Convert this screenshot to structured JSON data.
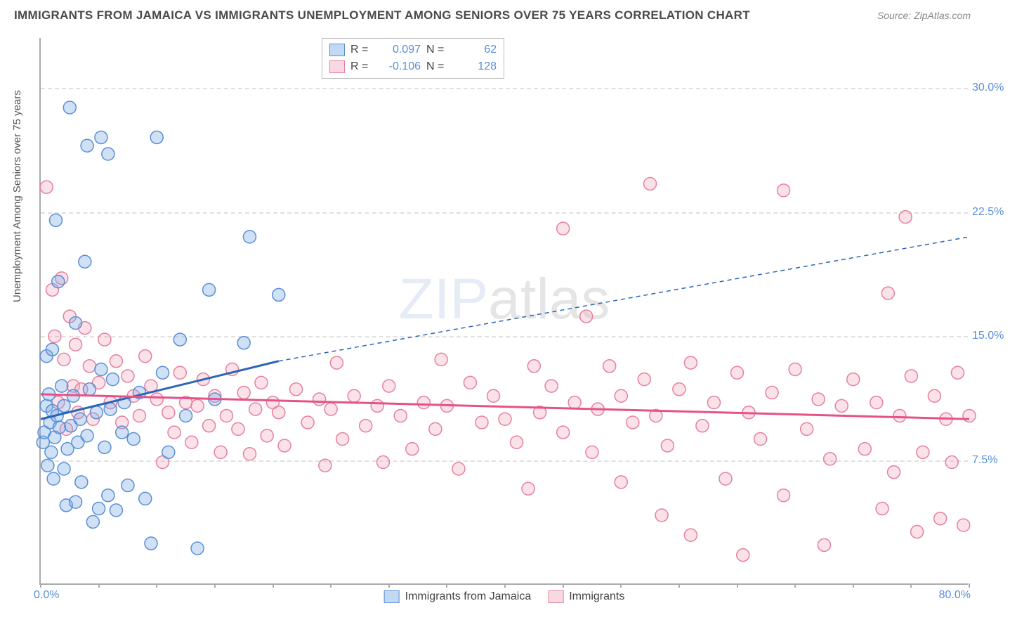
{
  "title": "IMMIGRANTS FROM JAMAICA VS IMMIGRANTS UNEMPLOYMENT AMONG SENIORS OVER 75 YEARS CORRELATION CHART",
  "source": "Source: ZipAtlas.com",
  "watermark_a": "ZIP",
  "watermark_b": "atlas",
  "ylabel": "Unemployment Among Seniors over 75 years",
  "chart": {
    "type": "scatter",
    "xlim": [
      0,
      80
    ],
    "ylim": [
      0,
      33
    ],
    "x_tick_marks": [
      0,
      5,
      10,
      15,
      20,
      25,
      30,
      35,
      40,
      45,
      50,
      55,
      60,
      65,
      70,
      75,
      80
    ],
    "x_tick_labels": {
      "0": "0.0%",
      "80": "80.0%"
    },
    "y_grid": [
      7.5,
      15.0,
      22.5,
      30.0
    ],
    "y_tick_labels": {
      "7.5": "7.5%",
      "15.0": "15.0%",
      "22.5": "22.5%",
      "30.0": "30.0%"
    },
    "background_color": "#ffffff",
    "grid_color": "#e0e0e0",
    "axis_color": "#aaaaaa",
    "tick_label_color": "#5a8fd6",
    "label_color": "#555555",
    "marker_radius": 9,
    "marker_stroke_width": 1.5,
    "series": [
      {
        "name": "Immigrants from Jamaica",
        "color_fill": "rgba(120,170,230,0.35)",
        "color_stroke": "#5a8fd6",
        "R": "0.097",
        "N": "62",
        "trend": {
          "x1": 0,
          "y1": 10.0,
          "x2": 20.5,
          "y2": 13.5,
          "x2_ext": 80,
          "y2_ext": 21.0,
          "color": "#2a66b8",
          "width": 3
        },
        "points": [
          [
            0.2,
            8.6
          ],
          [
            0.3,
            9.2
          ],
          [
            0.5,
            10.8
          ],
          [
            0.5,
            13.8
          ],
          [
            0.6,
            7.2
          ],
          [
            0.7,
            11.5
          ],
          [
            0.8,
            9.8
          ],
          [
            0.9,
            8.0
          ],
          [
            1.0,
            10.5
          ],
          [
            1.0,
            14.2
          ],
          [
            1.1,
            6.4
          ],
          [
            1.2,
            8.9
          ],
          [
            1.3,
            22.0
          ],
          [
            1.4,
            10.2
          ],
          [
            1.5,
            18.3
          ],
          [
            1.6,
            9.5
          ],
          [
            1.8,
            12.0
          ],
          [
            2.0,
            7.0
          ],
          [
            2.0,
            10.8
          ],
          [
            2.2,
            4.8
          ],
          [
            2.3,
            8.2
          ],
          [
            2.5,
            28.8
          ],
          [
            2.6,
            9.6
          ],
          [
            2.8,
            11.4
          ],
          [
            3.0,
            5.0
          ],
          [
            3.0,
            15.8
          ],
          [
            3.2,
            8.6
          ],
          [
            3.4,
            10.0
          ],
          [
            3.5,
            6.2
          ],
          [
            3.8,
            19.5
          ],
          [
            4.0,
            26.5
          ],
          [
            4.0,
            9.0
          ],
          [
            4.2,
            11.8
          ],
          [
            4.5,
            3.8
          ],
          [
            4.8,
            10.4
          ],
          [
            5.0,
            4.6
          ],
          [
            5.2,
            27.0
          ],
          [
            5.2,
            13.0
          ],
          [
            5.5,
            8.3
          ],
          [
            5.8,
            26.0
          ],
          [
            5.8,
            5.4
          ],
          [
            6.0,
            10.6
          ],
          [
            6.2,
            12.4
          ],
          [
            6.5,
            4.5
          ],
          [
            7.0,
            9.2
          ],
          [
            7.2,
            11.0
          ],
          [
            7.5,
            6.0
          ],
          [
            8.0,
            8.8
          ],
          [
            8.5,
            11.6
          ],
          [
            9.0,
            5.2
          ],
          [
            9.5,
            2.5
          ],
          [
            10.0,
            27.0
          ],
          [
            10.5,
            12.8
          ],
          [
            11.0,
            8.0
          ],
          [
            12.0,
            14.8
          ],
          [
            12.5,
            10.2
          ],
          [
            13.5,
            2.2
          ],
          [
            14.5,
            17.8
          ],
          [
            15.0,
            11.2
          ],
          [
            17.5,
            14.6
          ],
          [
            18.0,
            21.0
          ],
          [
            20.5,
            17.5
          ]
        ]
      },
      {
        "name": "Immigrants",
        "color_fill": "rgba(240,160,180,0.30)",
        "color_stroke": "#e6809f",
        "R": "-0.106",
        "N": "128",
        "trend": {
          "x1": 0,
          "y1": 11.5,
          "x2": 80,
          "y2": 10.0,
          "color": "#e65288",
          "width": 3
        },
        "points": [
          [
            0.5,
            24.0
          ],
          [
            1.0,
            17.8
          ],
          [
            1.2,
            15.0
          ],
          [
            1.5,
            11.0
          ],
          [
            1.8,
            18.5
          ],
          [
            2.0,
            13.6
          ],
          [
            2.2,
            9.4
          ],
          [
            2.5,
            16.2
          ],
          [
            2.8,
            12.0
          ],
          [
            3.0,
            14.5
          ],
          [
            3.2,
            10.4
          ],
          [
            3.5,
            11.8
          ],
          [
            3.8,
            15.5
          ],
          [
            4.2,
            13.2
          ],
          [
            4.5,
            10.0
          ],
          [
            5.0,
            12.2
          ],
          [
            5.5,
            14.8
          ],
          [
            6.0,
            11.0
          ],
          [
            6.5,
            13.5
          ],
          [
            7.0,
            9.8
          ],
          [
            7.5,
            12.6
          ],
          [
            8.0,
            11.4
          ],
          [
            8.5,
            10.2
          ],
          [
            9.0,
            13.8
          ],
          [
            9.5,
            12.0
          ],
          [
            10.0,
            11.2
          ],
          [
            10.5,
            7.4
          ],
          [
            11.0,
            10.4
          ],
          [
            11.5,
            9.2
          ],
          [
            12.0,
            12.8
          ],
          [
            12.5,
            11.0
          ],
          [
            13.0,
            8.6
          ],
          [
            13.5,
            10.8
          ],
          [
            14.0,
            12.4
          ],
          [
            14.5,
            9.6
          ],
          [
            15.0,
            11.4
          ],
          [
            15.5,
            8.0
          ],
          [
            16.0,
            10.2
          ],
          [
            16.5,
            13.0
          ],
          [
            17.0,
            9.4
          ],
          [
            17.5,
            11.6
          ],
          [
            18.0,
            7.9
          ],
          [
            18.5,
            10.6
          ],
          [
            19.0,
            12.2
          ],
          [
            19.5,
            9.0
          ],
          [
            20.0,
            11.0
          ],
          [
            20.5,
            10.4
          ],
          [
            21.0,
            8.4
          ],
          [
            22.0,
            11.8
          ],
          [
            23.0,
            9.8
          ],
          [
            24.0,
            11.2
          ],
          [
            24.5,
            7.2
          ],
          [
            25.0,
            10.6
          ],
          [
            25.5,
            13.4
          ],
          [
            26.0,
            8.8
          ],
          [
            27.0,
            11.4
          ],
          [
            28.0,
            9.6
          ],
          [
            29.0,
            10.8
          ],
          [
            29.5,
            7.4
          ],
          [
            30.0,
            12.0
          ],
          [
            31.0,
            10.2
          ],
          [
            32.0,
            8.2
          ],
          [
            33.0,
            11.0
          ],
          [
            34.0,
            9.4
          ],
          [
            34.5,
            13.6
          ],
          [
            35.0,
            10.8
          ],
          [
            36.0,
            7.0
          ],
          [
            37.0,
            12.2
          ],
          [
            38.0,
            9.8
          ],
          [
            39.0,
            11.4
          ],
          [
            40.0,
            10.0
          ],
          [
            41.0,
            8.6
          ],
          [
            42.0,
            5.8
          ],
          [
            42.5,
            13.2
          ],
          [
            43.0,
            10.4
          ],
          [
            44.0,
            12.0
          ],
          [
            45.0,
            21.5
          ],
          [
            45.0,
            9.2
          ],
          [
            46.0,
            11.0
          ],
          [
            47.0,
            16.2
          ],
          [
            47.5,
            8.0
          ],
          [
            48.0,
            10.6
          ],
          [
            49.0,
            13.2
          ],
          [
            50.0,
            11.4
          ],
          [
            50.0,
            6.2
          ],
          [
            51.0,
            9.8
          ],
          [
            52.0,
            12.4
          ],
          [
            52.5,
            24.2
          ],
          [
            53.0,
            10.2
          ],
          [
            53.5,
            4.2
          ],
          [
            54.0,
            8.4
          ],
          [
            55.0,
            11.8
          ],
          [
            56.0,
            13.4
          ],
          [
            56.0,
            3.0
          ],
          [
            57.0,
            9.6
          ],
          [
            58.0,
            11.0
          ],
          [
            59.0,
            6.4
          ],
          [
            60.0,
            12.8
          ],
          [
            60.5,
            1.8
          ],
          [
            61.0,
            10.4
          ],
          [
            62.0,
            8.8
          ],
          [
            63.0,
            11.6
          ],
          [
            64.0,
            23.8
          ],
          [
            64.0,
            5.4
          ],
          [
            65.0,
            13.0
          ],
          [
            66.0,
            9.4
          ],
          [
            67.0,
            11.2
          ],
          [
            67.5,
            2.4
          ],
          [
            68.0,
            7.6
          ],
          [
            69.0,
            10.8
          ],
          [
            70.0,
            12.4
          ],
          [
            71.0,
            8.2
          ],
          [
            72.0,
            11.0
          ],
          [
            72.5,
            4.6
          ],
          [
            73.0,
            17.6
          ],
          [
            73.5,
            6.8
          ],
          [
            74.0,
            10.2
          ],
          [
            74.5,
            22.2
          ],
          [
            75.0,
            12.6
          ],
          [
            75.5,
            3.2
          ],
          [
            76.0,
            8.0
          ],
          [
            77.0,
            11.4
          ],
          [
            77.5,
            4.0
          ],
          [
            78.0,
            10.0
          ],
          [
            78.5,
            7.4
          ],
          [
            79.0,
            12.8
          ],
          [
            79.5,
            3.6
          ],
          [
            80.0,
            10.2
          ]
        ]
      }
    ]
  },
  "legend_bottom": [
    {
      "swatch": "blue",
      "label": "Immigrants from Jamaica"
    },
    {
      "swatch": "pink",
      "label": "Immigrants"
    }
  ]
}
